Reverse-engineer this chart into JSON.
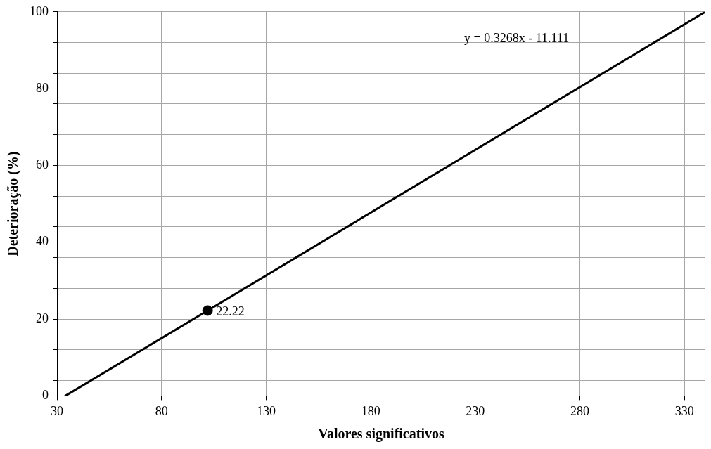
{
  "chart_data": {
    "type": "line",
    "xlabel": "Valores significativos",
    "ylabel": "Deterioração (%)",
    "xlim": [
      30,
      340
    ],
    "xticks": [
      30,
      80,
      130,
      180,
      230,
      280,
      330
    ],
    "ylim": [
      0,
      100
    ],
    "yticks": [
      0,
      {
        "value": 4,
        "label": null
      },
      {
        "value": 8,
        "label": null
      },
      {
        "value": 12,
        "label": null
      },
      {
        "value": 16,
        "label": null
      },
      20,
      {
        "value": 24,
        "label": null
      },
      {
        "value": 28,
        "label": null
      },
      {
        "value": 32,
        "label": null
      },
      {
        "value": 36,
        "label": null
      },
      40,
      {
        "value": 44,
        "label": null
      },
      {
        "value": 48,
        "label": null
      },
      {
        "value": 52,
        "label": null
      },
      {
        "value": 56,
        "label": null
      },
      60,
      {
        "value": 64,
        "label": null
      },
      {
        "value": 68,
        "label": null
      },
      {
        "value": 72,
        "label": null
      },
      {
        "value": 76,
        "label": null
      },
      80,
      {
        "value": 84,
        "label": null
      },
      {
        "value": 88,
        "label": null
      },
      {
        "value": 92,
        "label": null
      },
      {
        "value": 96,
        "label": null
      },
      100
    ],
    "grid": true,
    "legend": false,
    "series": [
      {
        "type": "line",
        "color": "#000000",
        "x": [
          34,
          340
        ],
        "values": [
          0,
          100
        ],
        "marker": "none",
        "line_style": "solid"
      },
      {
        "type": "scatter",
        "color": "#000000",
        "x": [
          102
        ],
        "values": [
          22.22
        ],
        "marker": "circle",
        "value_labels": [
          "22.22"
        ]
      }
    ],
    "annotations": [
      "y = 0.3268x - 11.111"
    ]
  }
}
